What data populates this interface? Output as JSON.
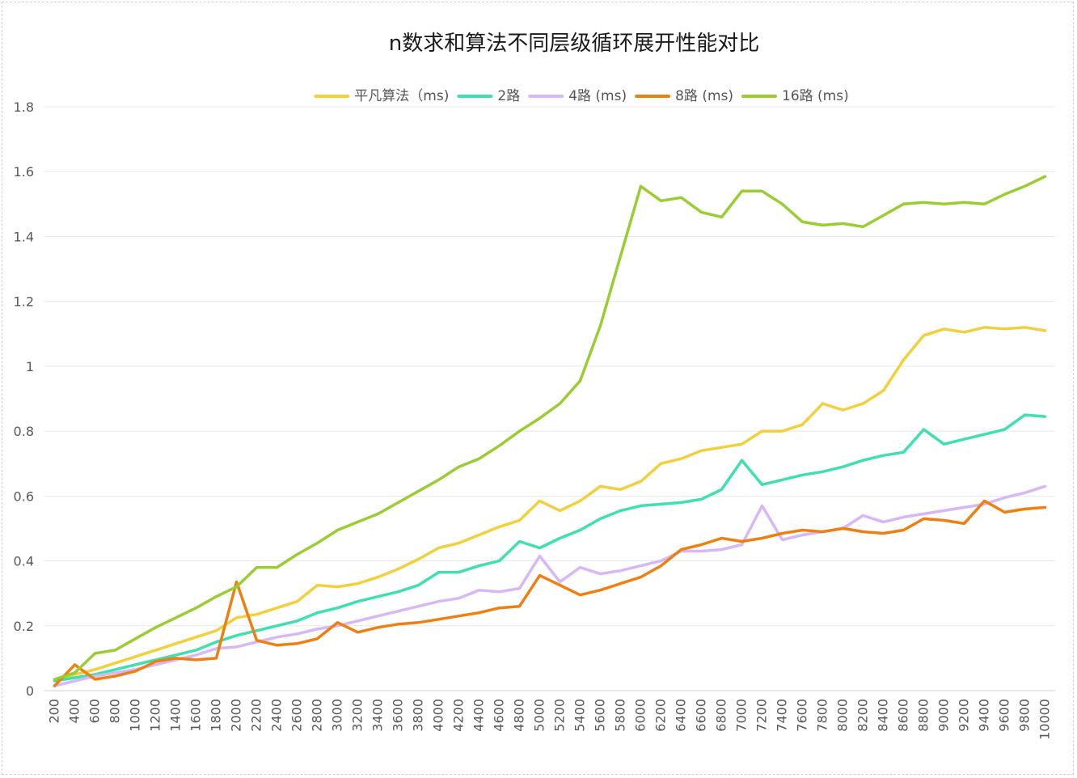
{
  "chart_data": {
    "type": "line",
    "title": "n数求和算法不同层级循环展开性能对比",
    "xlabel": "",
    "ylabel": "",
    "ylim": [
      0,
      1.8
    ],
    "y_ticks": [
      "0",
      "0.2",
      "0.4",
      "0.6",
      "0.8",
      "1",
      "1.2",
      "1.4",
      "1.6",
      "1.8"
    ],
    "grid": "horizontal",
    "legend_position": "top",
    "x": [
      "200",
      "400",
      "600",
      "800",
      "1000",
      "1200",
      "1400",
      "1600",
      "1800",
      "2000",
      "2200",
      "2400",
      "2600",
      "2800",
      "3000",
      "3200",
      "3400",
      "3600",
      "3800",
      "4000",
      "4200",
      "4400",
      "4600",
      "4800",
      "5000",
      "5200",
      "5400",
      "5600",
      "5800",
      "6000",
      "6200",
      "6400",
      "6600",
      "6800",
      "7000",
      "7200",
      "7400",
      "7600",
      "7800",
      "8000",
      "8200",
      "8400",
      "8600",
      "8800",
      "9000",
      "9200",
      "9400",
      "9600",
      "9800",
      "10000"
    ],
    "series": [
      {
        "name": "平凡算法（ms)",
        "color": "#f2d03b",
        "values": [
          0.03,
          0.05,
          0.065,
          0.085,
          0.105,
          0.125,
          0.145,
          0.165,
          0.185,
          0.225,
          0.235,
          0.255,
          0.275,
          0.325,
          0.32,
          0.33,
          0.35,
          0.375,
          0.405,
          0.44,
          0.455,
          0.48,
          0.505,
          0.525,
          0.585,
          0.555,
          0.585,
          0.63,
          0.62,
          0.645,
          0.7,
          0.715,
          0.74,
          0.75,
          0.76,
          0.8,
          0.8,
          0.82,
          0.885,
          0.865,
          0.885,
          0.925,
          1.02,
          1.095,
          1.115,
          1.105,
          1.12,
          1.115,
          1.12,
          1.11
        ]
      },
      {
        "name": "2路",
        "color": "#3de0b0",
        "values": [
          0.03,
          0.04,
          0.05,
          0.065,
          0.08,
          0.095,
          0.11,
          0.125,
          0.15,
          0.17,
          0.185,
          0.2,
          0.215,
          0.24,
          0.255,
          0.275,
          0.29,
          0.305,
          0.325,
          0.365,
          0.365,
          0.385,
          0.4,
          0.46,
          0.44,
          0.47,
          0.495,
          0.53,
          0.555,
          0.57,
          0.575,
          0.58,
          0.59,
          0.62,
          0.71,
          0.635,
          0.65,
          0.665,
          0.675,
          0.69,
          0.71,
          0.725,
          0.735,
          0.805,
          0.76,
          0.775,
          0.79,
          0.805,
          0.85,
          0.845
        ]
      },
      {
        "name": "4路 (ms)",
        "color": "#d5b8f5",
        "values": [
          0.015,
          0.03,
          0.045,
          0.055,
          0.065,
          0.08,
          0.095,
          0.11,
          0.13,
          0.135,
          0.15,
          0.165,
          0.175,
          0.19,
          0.2,
          0.215,
          0.23,
          0.245,
          0.26,
          0.275,
          0.285,
          0.31,
          0.305,
          0.315,
          0.415,
          0.335,
          0.38,
          0.36,
          0.37,
          0.385,
          0.4,
          0.43,
          0.43,
          0.435,
          0.45,
          0.57,
          0.465,
          0.48,
          0.49,
          0.5,
          0.54,
          0.52,
          0.535,
          0.545,
          0.555,
          0.565,
          0.575,
          0.595,
          0.61,
          0.63
        ]
      },
      {
        "name": "8路 (ms)",
        "color": "#f07f12",
        "values": [
          0.015,
          0.08,
          0.035,
          0.045,
          0.06,
          0.09,
          0.1,
          0.095,
          0.1,
          0.335,
          0.155,
          0.14,
          0.145,
          0.16,
          0.21,
          0.18,
          0.195,
          0.205,
          0.21,
          0.22,
          0.23,
          0.24,
          0.255,
          0.26,
          0.355,
          0.325,
          0.295,
          0.31,
          0.33,
          0.35,
          0.385,
          0.435,
          0.45,
          0.47,
          0.46,
          0.47,
          0.485,
          0.495,
          0.49,
          0.5,
          0.49,
          0.485,
          0.495,
          0.53,
          0.525,
          0.515,
          0.585,
          0.55,
          0.56,
          0.565
        ]
      },
      {
        "name": "16路 (ms)",
        "color": "#9acd32",
        "values": [
          0.035,
          0.055,
          0.115,
          0.125,
          0.16,
          0.195,
          0.225,
          0.255,
          0.29,
          0.32,
          0.38,
          0.38,
          0.42,
          0.455,
          0.495,
          0.52,
          0.545,
          0.58,
          0.615,
          0.65,
          0.69,
          0.715,
          0.755,
          0.8,
          0.84,
          0.885,
          0.955,
          1.125,
          1.34,
          1.555,
          1.51,
          1.52,
          1.475,
          1.46,
          1.54,
          1.54,
          1.5,
          1.445,
          1.435,
          1.44,
          1.43,
          1.465,
          1.5,
          1.505,
          1.5,
          1.505,
          1.5,
          1.53,
          1.555,
          1.585
        ]
      }
    ]
  }
}
